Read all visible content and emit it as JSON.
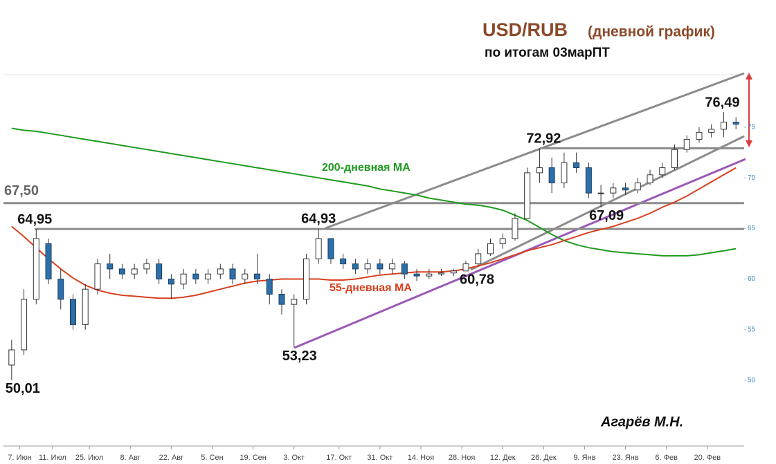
{
  "chart_data": {
    "type": "candlestick",
    "title": "USD/RUB",
    "title_note": "(дневной график)",
    "subtitle": "по итогам 03марПТ",
    "author": "Агарёв М.Н.",
    "xlim": [
      -1,
      180
    ],
    "ylim": [
      43.5,
      80.4
    ],
    "yticks": [
      50,
      55,
      60,
      65,
      70,
      75
    ],
    "xticks": [
      {
        "value": 3,
        "label": "7. Июн"
      },
      {
        "value": 11,
        "label": "11. Июл"
      },
      {
        "value": 20,
        "label": "25. Июл"
      },
      {
        "value": 30,
        "label": "8. Авг"
      },
      {
        "value": 40,
        "label": "22. Авг"
      },
      {
        "value": 50,
        "label": "5. Сен"
      },
      {
        "value": 60,
        "label": "19. Сен"
      },
      {
        "value": 70,
        "label": "3. Окт"
      },
      {
        "value": 81,
        "label": "17. Окт"
      },
      {
        "value": 91,
        "label": "31. Окт"
      },
      {
        "value": 101,
        "label": "14. Ноя"
      },
      {
        "value": 111,
        "label": "28. Ноя"
      },
      {
        "value": 121,
        "label": "12. Дек"
      },
      {
        "value": 131,
        "label": "26. Дек"
      },
      {
        "value": 141,
        "label": "9. Янв"
      },
      {
        "value": 151,
        "label": "23. Янв"
      },
      {
        "value": 161,
        "label": "6. Фев"
      },
      {
        "value": 171,
        "label": "20. Фев"
      }
    ],
    "x": [
      1,
      4,
      7,
      10,
      13,
      16,
      19,
      22,
      25,
      28,
      31,
      34,
      37,
      40,
      43,
      46,
      49,
      52,
      55,
      58,
      61,
      64,
      67,
      70,
      73,
      76,
      79,
      82,
      85,
      88,
      91,
      94,
      97,
      100,
      103,
      106,
      109,
      112,
      115,
      118,
      121,
      124,
      127,
      130,
      133,
      136,
      139,
      142,
      145,
      148,
      151,
      154,
      157,
      160,
      163,
      166,
      169,
      172,
      175,
      178
    ],
    "open": [
      51.5,
      53,
      58,
      63.5,
      60,
      58,
      55.5,
      59,
      61.5,
      61,
      60.5,
      61,
      61.5,
      60,
      59.5,
      60.5,
      60,
      60.5,
      61,
      60,
      60.5,
      60,
      58.5,
      57.5,
      58,
      62,
      64,
      62,
      61.5,
      61,
      61.5,
      61,
      61.5,
      60.5,
      60.3,
      60.5,
      60.6,
      60.8,
      61.5,
      62.5,
      63.5,
      64,
      66,
      70.5,
      71,
      69.5,
      71.5,
      71,
      68.5,
      68.5,
      69,
      68.8,
      69.5,
      70.3,
      71,
      72.8,
      73.8,
      74.5,
      74.8,
      75.5
    ],
    "high": [
      54,
      59,
      64.95,
      64,
      61,
      58.5,
      59.5,
      62,
      62.5,
      61.5,
      61.5,
      62,
      62,
      60.5,
      61,
      61,
      61,
      61.5,
      61.5,
      61,
      62.5,
      60.5,
      59,
      58.5,
      62.5,
      64.93,
      64,
      62.5,
      62,
      62,
      62,
      62,
      61.8,
      61,
      61,
      61,
      61,
      61.8,
      63,
      64,
      64.5,
      66.5,
      71,
      72.92,
      72,
      72.5,
      72.5,
      71.5,
      69.3,
      69.5,
      69.5,
      70,
      70.8,
      71.5,
      73.3,
      74.2,
      75,
      75.3,
      76.49,
      76
    ],
    "low": [
      50.01,
      52.5,
      57.5,
      59.5,
      57,
      55,
      55,
      58.5,
      60,
      60,
      60,
      60.5,
      59.5,
      58,
      59,
      59.5,
      59.5,
      60,
      59.5,
      59.5,
      59.5,
      57.5,
      56.5,
      53.23,
      57.5,
      61.5,
      61.5,
      61,
      60.5,
      60.5,
      60.5,
      60.5,
      60,
      59.8,
      60,
      60.3,
      60.3,
      60.78,
      61.3,
      62.3,
      63,
      63.8,
      66,
      69.5,
      68.5,
      69,
      70.5,
      68,
      67.09,
      68,
      68.3,
      68.5,
      69.3,
      70,
      70.8,
      72.5,
      73.5,
      74,
      74,
      74.8
    ],
    "close": [
      53,
      58,
      64,
      60,
      58,
      55.5,
      59,
      61.5,
      61,
      60.5,
      61,
      61.5,
      60,
      59.5,
      60.5,
      60,
      60.5,
      61,
      60,
      60.5,
      60,
      58.5,
      57.5,
      58,
      62,
      64,
      62,
      61.5,
      61,
      61.5,
      61,
      61.5,
      60.5,
      60.3,
      60.5,
      60.6,
      60.8,
      61.5,
      62.5,
      63.5,
      64,
      66,
      70.5,
      71,
      69.5,
      71.5,
      71,
      68.5,
      68.5,
      69,
      68.8,
      69.5,
      70.3,
      71,
      72.8,
      73.8,
      74.5,
      74.8,
      75.5,
      75.3
    ],
    "up_color": "#ffffff",
    "down_color": "#2d6fa8",
    "series": [
      {
        "name": "200-дневная МА",
        "color": "#1f9a1f",
        "values": [
          74.9,
          74.7,
          74.6,
          74.4,
          74.2,
          74.0,
          73.8,
          73.6,
          73.4,
          73.2,
          73.0,
          72.8,
          72.6,
          72.4,
          72.2,
          72.0,
          71.8,
          71.6,
          71.4,
          71.2,
          71.0,
          70.8,
          70.6,
          70.4,
          70.2,
          70.0,
          69.8,
          69.6,
          69.4,
          69.2,
          68.9,
          68.7,
          68.5,
          68.3,
          68.0,
          67.8,
          67.6,
          67.4,
          67.3,
          67.1,
          66.8,
          66.3,
          65.8,
          65.1,
          64.4,
          63.8,
          63.4,
          63.1,
          62.9,
          62.7,
          62.6,
          62.5,
          62.4,
          62.3,
          62.3,
          62.3,
          62.4,
          62.6,
          62.8,
          63.0
        ]
      },
      {
        "name": "55-дневная МА",
        "color": "#d9401f",
        "values": [
          65.2,
          64.2,
          63.1,
          62.0,
          61.0,
          60.1,
          59.4,
          58.9,
          58.6,
          58.4,
          58.3,
          58.2,
          58.1,
          58.1,
          58.2,
          58.4,
          58.7,
          59.0,
          59.3,
          59.6,
          59.8,
          59.9,
          60.0,
          60.0,
          60.0,
          60.0,
          59.9,
          59.9,
          60.0,
          60.2,
          60.4,
          60.5,
          60.6,
          60.7,
          60.7,
          60.7,
          60.8,
          61.0,
          61.3,
          61.6,
          62.0,
          62.4,
          62.8,
          63.1,
          63.4,
          63.8,
          64.2,
          64.6,
          64.9,
          65.2,
          65.6,
          66.0,
          66.5,
          67.1,
          67.6,
          68.2,
          68.9,
          69.6,
          70.3,
          71.0
        ]
      }
    ],
    "hlines": [
      {
        "value": 67.5,
        "label": "67,50"
      },
      64.95,
      72.92
    ],
    "annotations": [
      {
        "text": "50,01",
        "x": 1,
        "value": 50.01
      },
      {
        "text": "64,95",
        "x": 7,
        "value": 64.95
      },
      {
        "text": "53,23",
        "x": 70,
        "value": 53.23
      },
      {
        "text": "64,93",
        "x": 76,
        "value": 64.93
      },
      {
        "text": "60,78",
        "x": 112,
        "value": 60.78
      },
      {
        "text": "72,92",
        "x": 130,
        "value": 72.92
      },
      {
        "text": "67,09",
        "x": 145,
        "value": 67.09
      },
      {
        "text": "76,49",
        "x": 175,
        "value": 76.49
      }
    ]
  }
}
